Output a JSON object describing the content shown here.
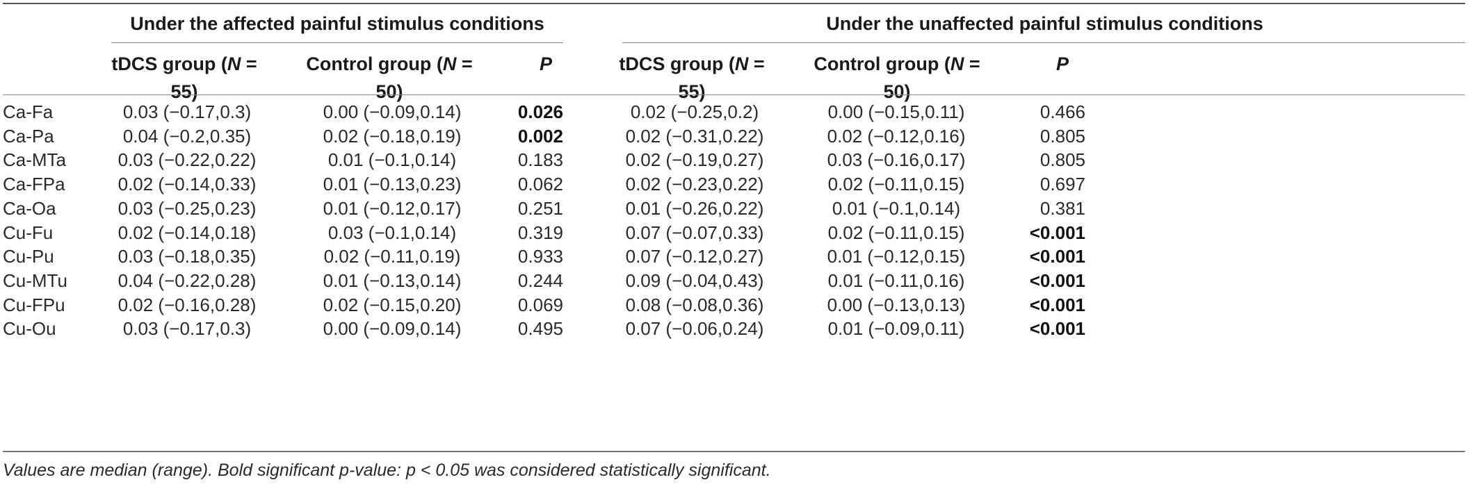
{
  "group_headers": {
    "affected": "Under the affected painful stimulus conditions",
    "unaffected": "Under the unaffected painful stimulus conditions"
  },
  "column_headers": {
    "tdcs_prefix": "tDCS group (",
    "tdcs_n": "N",
    "tdcs_suffix": " = 55)",
    "control_prefix": "Control group (",
    "control_n": "N",
    "control_suffix": " = 50)",
    "p": "P"
  },
  "rows": [
    {
      "label": "Ca-Fa",
      "a_tdcs": "0.03 (−0.17,0.3)",
      "a_ctrl": "0.00 (−0.09,0.14)",
      "a_p": "0.026",
      "a_p_bold": true,
      "u_tdcs": "0.02 (−0.25,0.2)",
      "u_ctrl": "0.00 (−0.15,0.11)",
      "u_p": "0.466",
      "u_p_bold": false
    },
    {
      "label": "Ca-Pa",
      "a_tdcs": "0.04 (−0.2,0.35)",
      "a_ctrl": "0.02 (−0.18,0.19)",
      "a_p": "0.002",
      "a_p_bold": true,
      "u_tdcs": "0.02 (−0.31,0.22)",
      "u_ctrl": "0.02 (−0.12,0.16)",
      "u_p": "0.805",
      "u_p_bold": false
    },
    {
      "label": "Ca-MTa",
      "a_tdcs": "0.03 (−0.22,0.22)",
      "a_ctrl": "0.01 (−0.1,0.14)",
      "a_p": "0.183",
      "a_p_bold": false,
      "u_tdcs": "0.02 (−0.19,0.27)",
      "u_ctrl": "0.03 (−0.16,0.17)",
      "u_p": "0.805",
      "u_p_bold": false
    },
    {
      "label": "Ca-FPa",
      "a_tdcs": "0.02 (−0.14,0.33)",
      "a_ctrl": "0.01 (−0.13,0.23)",
      "a_p": "0.062",
      "a_p_bold": false,
      "u_tdcs": "0.02 (−0.23,0.22)",
      "u_ctrl": "0.02 (−0.11,0.15)",
      "u_p": "0.697",
      "u_p_bold": false
    },
    {
      "label": "Ca-Oa",
      "a_tdcs": "0.03 (−0.25,0.23)",
      "a_ctrl": "0.01 (−0.12,0.17)",
      "a_p": "0.251",
      "a_p_bold": false,
      "u_tdcs": "0.01 (−0.26,0.22)",
      "u_ctrl": "0.01 (−0.1,0.14)",
      "u_p": "0.381",
      "u_p_bold": false
    },
    {
      "label": "Cu-Fu",
      "a_tdcs": "0.02 (−0.14,0.18)",
      "a_ctrl": "0.03 (−0.1,0.14)",
      "a_p": "0.319",
      "a_p_bold": false,
      "u_tdcs": "0.07 (−0.07,0.33)",
      "u_ctrl": "0.02 (−0.11,0.15)",
      "u_p": "<0.001",
      "u_p_bold": true
    },
    {
      "label": "Cu-Pu",
      "a_tdcs": "0.03 (−0.18,0.35)",
      "a_ctrl": "0.02 (−0.11,0.19)",
      "a_p": "0.933",
      "a_p_bold": false,
      "u_tdcs": "0.07 (−0.12,0.27)",
      "u_ctrl": "0.01 (−0.12,0.15)",
      "u_p": "<0.001",
      "u_p_bold": true
    },
    {
      "label": "Cu-MTu",
      "a_tdcs": "0.04 (−0.22,0.28)",
      "a_ctrl": "0.01 (−0.13,0.14)",
      "a_p": "0.244",
      "a_p_bold": false,
      "u_tdcs": "0.09 (−0.04,0.43)",
      "u_ctrl": "0.01 (−0.11,0.16)",
      "u_p": "<0.001",
      "u_p_bold": true
    },
    {
      "label": "Cu-FPu",
      "a_tdcs": "0.02 (−0.16,0.28)",
      "a_ctrl": "0.02 (−0.15,0.20)",
      "a_p": "0.069",
      "a_p_bold": false,
      "u_tdcs": "0.08 (−0.08,0.36)",
      "u_ctrl": "0.00 (−0.13,0.13)",
      "u_p": "<0.001",
      "u_p_bold": true
    },
    {
      "label": "Cu-Ou",
      "a_tdcs": "0.03 (−0.17,0.3)",
      "a_ctrl": "0.00 (−0.09,0.14)",
      "a_p": "0.495",
      "a_p_bold": false,
      "u_tdcs": "0.07 (−0.06,0.24)",
      "u_ctrl": "0.01 (−0.09,0.11)",
      "u_p": "<0.001",
      "u_p_bold": true
    }
  ],
  "footnote": "Values are median (range). Bold significant p-value: p < 0.05 was considered statistically significant."
}
